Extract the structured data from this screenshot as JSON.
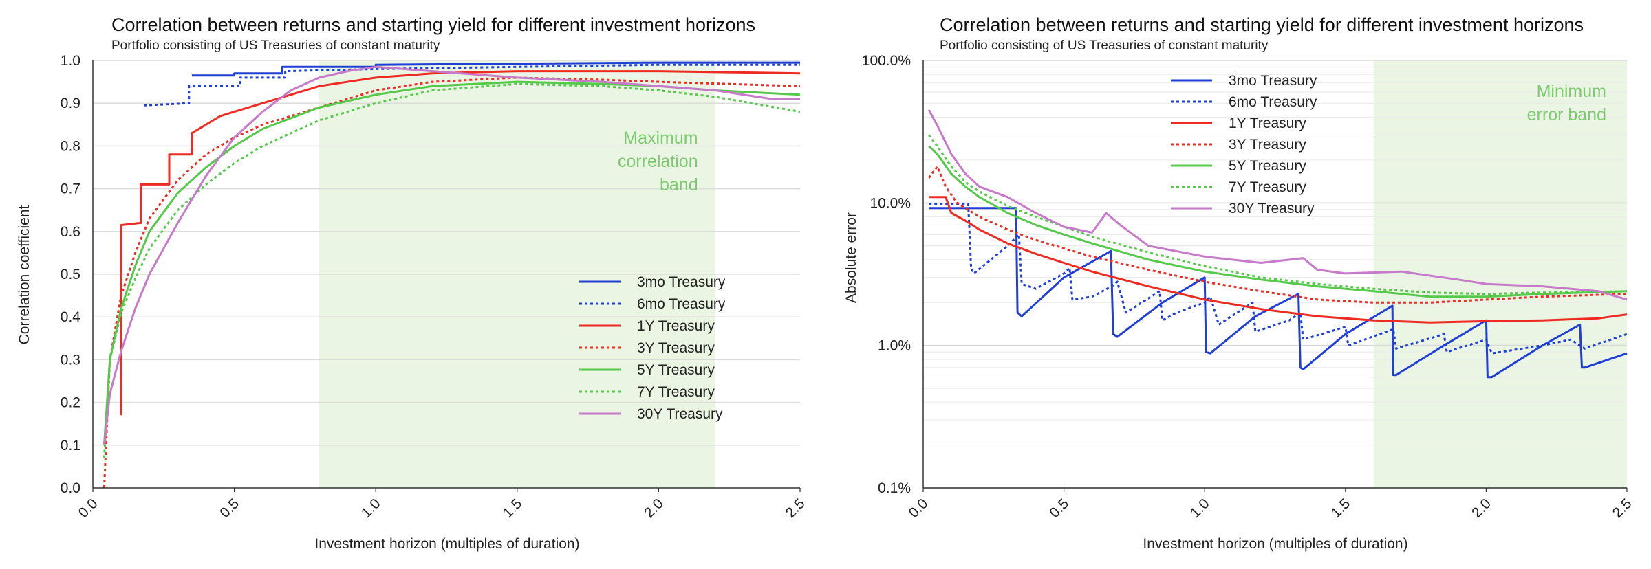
{
  "colors": {
    "3mo": "#1f3fd6",
    "6mo": "#1f3fd6",
    "1Y": "#ee2b22",
    "3Y": "#ee2b22",
    "5Y": "#55c94a",
    "7Y": "#55c94a",
    "30Y": "#c77ac9",
    "band": "#eaf5e4",
    "band_text": "#7cc96f"
  },
  "chart_data": [
    {
      "type": "line",
      "title": "Correlation between returns and starting yield for different investment horizons",
      "subtitle": "Portfolio consisting of US Treasuries of constant maturity",
      "xlabel": "Investment horizon (multiples of duration)",
      "ylabel": "Correlation coefficient",
      "xlim": [
        0,
        2.5
      ],
      "ylim": [
        0,
        1
      ],
      "xticks": [
        "0.0",
        "0.5",
        "1.0",
        "1.5",
        "2.0",
        "2.5"
      ],
      "yticks": [
        "0.0",
        "0.1",
        "0.2",
        "0.3",
        "0.4",
        "0.5",
        "0.6",
        "0.7",
        "0.8",
        "0.9",
        "1.0"
      ],
      "band": {
        "x0": 0.8,
        "x1": 2.2,
        "label": [
          "Maximum",
          "correlation",
          "band"
        ]
      },
      "legend": "center-right",
      "series": [
        {
          "name": "3mo Treasury",
          "key": "3mo",
          "dash": false,
          "x": [
            0.35,
            0.35,
            0.5,
            0.5,
            0.67,
            0.67,
            1.0,
            1.0,
            2.0,
            2.5
          ],
          "y": [
            0.965,
            0.965,
            0.965,
            0.97,
            0.97,
            0.985,
            0.985,
            0.99,
            0.995,
            0.995
          ]
        },
        {
          "name": "6mo Treasury",
          "key": "6mo",
          "dash": true,
          "x": [
            0.18,
            0.34,
            0.34,
            0.52,
            0.52,
            0.68,
            0.68,
            1.0,
            1.5,
            2.0,
            2.5
          ],
          "y": [
            0.895,
            0.9,
            0.94,
            0.94,
            0.96,
            0.96,
            0.975,
            0.98,
            0.985,
            0.99,
            0.99
          ]
        },
        {
          "name": "1Y Treasury",
          "key": "1Y",
          "dash": false,
          "x": [
            0.1,
            0.1,
            0.17,
            0.17,
            0.27,
            0.27,
            0.35,
            0.35,
            0.45,
            0.5,
            0.6,
            0.7,
            0.8,
            1.0,
            1.2,
            1.5,
            2.0,
            2.5
          ],
          "y": [
            0.17,
            0.615,
            0.62,
            0.71,
            0.71,
            0.78,
            0.78,
            0.83,
            0.87,
            0.88,
            0.9,
            0.92,
            0.94,
            0.96,
            0.97,
            0.975,
            0.975,
            0.97
          ]
        },
        {
          "name": "3Y Treasury",
          "key": "3Y",
          "dash": true,
          "x": [
            0.04,
            0.06,
            0.1,
            0.15,
            0.2,
            0.3,
            0.4,
            0.5,
            0.6,
            0.8,
            1.0,
            1.2,
            1.5,
            1.8,
            2.0,
            2.5
          ],
          "y": [
            0.0,
            0.3,
            0.45,
            0.55,
            0.63,
            0.72,
            0.78,
            0.82,
            0.85,
            0.89,
            0.93,
            0.95,
            0.96,
            0.955,
            0.95,
            0.94
          ]
        },
        {
          "name": "5Y Treasury",
          "key": "5Y",
          "dash": false,
          "x": [
            0.04,
            0.06,
            0.1,
            0.15,
            0.2,
            0.3,
            0.4,
            0.5,
            0.6,
            0.8,
            1.0,
            1.2,
            1.5,
            1.8,
            2.0,
            2.2,
            2.5
          ],
          "y": [
            0.1,
            0.3,
            0.42,
            0.52,
            0.6,
            0.69,
            0.75,
            0.8,
            0.84,
            0.89,
            0.92,
            0.94,
            0.95,
            0.945,
            0.94,
            0.93,
            0.92
          ]
        },
        {
          "name": "7Y Treasury",
          "key": "7Y",
          "dash": true,
          "x": [
            0.04,
            0.06,
            0.1,
            0.15,
            0.2,
            0.3,
            0.4,
            0.5,
            0.6,
            0.8,
            1.0,
            1.2,
            1.5,
            1.8,
            2.0,
            2.2,
            2.5
          ],
          "y": [
            0.07,
            0.3,
            0.41,
            0.49,
            0.56,
            0.65,
            0.71,
            0.76,
            0.8,
            0.86,
            0.9,
            0.93,
            0.945,
            0.94,
            0.93,
            0.915,
            0.88
          ]
        },
        {
          "name": "30Y Treasury",
          "key": "30Y",
          "dash": false,
          "x": [
            0.04,
            0.06,
            0.1,
            0.15,
            0.2,
            0.3,
            0.4,
            0.5,
            0.6,
            0.7,
            0.8,
            0.9,
            1.0,
            1.2,
            1.5,
            1.8,
            2.0,
            2.2,
            2.4,
            2.5
          ],
          "y": [
            0.1,
            0.22,
            0.32,
            0.42,
            0.5,
            0.62,
            0.73,
            0.82,
            0.88,
            0.93,
            0.96,
            0.975,
            0.985,
            0.975,
            0.96,
            0.95,
            0.94,
            0.93,
            0.91,
            0.91
          ]
        }
      ]
    },
    {
      "type": "line",
      "title": "Correlation between returns and starting yield for different investment horizons",
      "subtitle": "Portfolio consisting of US Treasuries of constant maturity",
      "xlabel": "Investment horizon (multiples of duration)",
      "ylabel": "Absolute error",
      "yscale": "log",
      "xlim": [
        0,
        2.5
      ],
      "ylim": [
        0.1,
        100
      ],
      "xticks": [
        "0.0",
        "0.5",
        "1.0",
        "1.5",
        "2.0",
        "2.5"
      ],
      "yticks": [
        "0.1%",
        "1.0%",
        "10.0%",
        "100.0%"
      ],
      "band": {
        "x0": 1.6,
        "x1": 2.5,
        "label": [
          "Minimum",
          "error band"
        ]
      },
      "legend": "top-center",
      "series": [
        {
          "name": "3mo Treasury",
          "key": "3mo",
          "dash": false,
          "x": [
            0.02,
            0.33,
            0.335,
            0.35,
            0.5,
            0.667,
            0.675,
            0.69,
            0.85,
            1.0,
            1.005,
            1.02,
            1.18,
            1.333,
            1.34,
            1.35,
            1.5,
            1.667,
            1.67,
            1.68,
            1.85,
            2.0,
            2.005,
            2.02,
            2.2,
            2.333,
            2.34,
            2.35,
            2.5
          ],
          "y": [
            9.2,
            9.2,
            1.7,
            1.6,
            3.0,
            4.6,
            1.2,
            1.15,
            2.0,
            3.0,
            0.9,
            0.88,
            1.6,
            2.3,
            0.7,
            0.68,
            1.2,
            1.9,
            0.62,
            0.62,
            1.0,
            1.5,
            0.6,
            0.6,
            1.0,
            1.4,
            0.7,
            0.7,
            0.88
          ]
        },
        {
          "name": "6mo Treasury",
          "key": "6mo",
          "dash": true,
          "x": [
            0.02,
            0.16,
            0.17,
            0.18,
            0.3,
            0.34,
            0.35,
            0.4,
            0.5,
            0.52,
            0.53,
            0.6,
            0.67,
            0.69,
            0.72,
            0.84,
            0.85,
            0.9,
            1.0,
            1.02,
            1.05,
            1.17,
            1.18,
            1.3,
            1.34,
            1.35,
            1.5,
            1.51,
            1.67,
            1.68,
            1.85,
            1.86,
            2.0,
            2.02,
            2.2,
            2.3,
            2.35,
            2.5
          ],
          "y": [
            9.8,
            9.8,
            3.5,
            3.2,
            5.0,
            6.0,
            2.7,
            2.5,
            3.2,
            3.5,
            2.1,
            2.2,
            2.6,
            2.8,
            1.7,
            2.4,
            1.5,
            1.7,
            2.0,
            2.2,
            1.4,
            2.0,
            1.25,
            1.5,
            1.7,
            1.1,
            1.35,
            1.0,
            1.3,
            0.95,
            1.2,
            0.9,
            1.1,
            0.88,
            1.0,
            1.1,
            0.95,
            1.2
          ]
        },
        {
          "name": "1Y Treasury",
          "key": "1Y",
          "dash": false,
          "x": [
            0.02,
            0.08,
            0.1,
            0.15,
            0.2,
            0.3,
            0.4,
            0.5,
            0.6,
            0.8,
            1.0,
            1.2,
            1.4,
            1.6,
            1.8,
            2.0,
            2.2,
            2.4,
            2.5
          ],
          "y": [
            11.0,
            11.0,
            8.5,
            7.5,
            6.5,
            5.2,
            4.4,
            3.8,
            3.3,
            2.6,
            2.1,
            1.8,
            1.6,
            1.5,
            1.45,
            1.48,
            1.5,
            1.55,
            1.65
          ]
        },
        {
          "name": "3Y Treasury",
          "key": "3Y",
          "dash": true,
          "x": [
            0.02,
            0.05,
            0.08,
            0.12,
            0.2,
            0.3,
            0.4,
            0.5,
            0.6,
            0.8,
            1.0,
            1.2,
            1.4,
            1.6,
            1.8,
            2.0,
            2.2,
            2.5
          ],
          "y": [
            15.0,
            18.0,
            13.0,
            10.0,
            8.0,
            6.5,
            5.5,
            4.8,
            4.2,
            3.4,
            2.8,
            2.4,
            2.1,
            2.0,
            2.0,
            2.1,
            2.2,
            2.3
          ]
        },
        {
          "name": "5Y Treasury",
          "key": "5Y",
          "dash": false,
          "x": [
            0.02,
            0.05,
            0.1,
            0.15,
            0.2,
            0.3,
            0.4,
            0.5,
            0.6,
            0.8,
            1.0,
            1.2,
            1.4,
            1.6,
            1.8,
            2.0,
            2.2,
            2.5
          ],
          "y": [
            25.0,
            22.0,
            16.0,
            13.0,
            11.0,
            8.5,
            7.0,
            6.0,
            5.2,
            4.0,
            3.3,
            2.9,
            2.6,
            2.4,
            2.2,
            2.2,
            2.3,
            2.4
          ]
        },
        {
          "name": "7Y Treasury",
          "key": "7Y",
          "dash": true,
          "x": [
            0.02,
            0.05,
            0.1,
            0.15,
            0.2,
            0.3,
            0.4,
            0.5,
            0.6,
            0.8,
            1.0,
            1.2,
            1.4,
            1.6,
            1.8,
            2.0,
            2.2,
            2.5
          ],
          "y": [
            30.0,
            25.0,
            18.0,
            14.0,
            12.0,
            9.5,
            8.0,
            6.8,
            5.8,
            4.5,
            3.6,
            3.0,
            2.7,
            2.5,
            2.35,
            2.3,
            2.35,
            2.4
          ]
        },
        {
          "name": "30Y Treasury",
          "key": "30Y",
          "dash": false,
          "x": [
            0.02,
            0.05,
            0.1,
            0.15,
            0.2,
            0.3,
            0.4,
            0.5,
            0.6,
            0.65,
            0.7,
            0.8,
            1.0,
            1.2,
            1.35,
            1.4,
            1.5,
            1.7,
            1.9,
            2.0,
            2.2,
            2.4,
            2.5
          ],
          "y": [
            45.0,
            35.0,
            22.0,
            16.0,
            13.0,
            11.0,
            8.5,
            6.8,
            6.2,
            8.5,
            7.0,
            5.0,
            4.2,
            3.8,
            4.1,
            3.4,
            3.2,
            3.3,
            2.9,
            2.7,
            2.6,
            2.4,
            2.1
          ]
        }
      ]
    }
  ]
}
